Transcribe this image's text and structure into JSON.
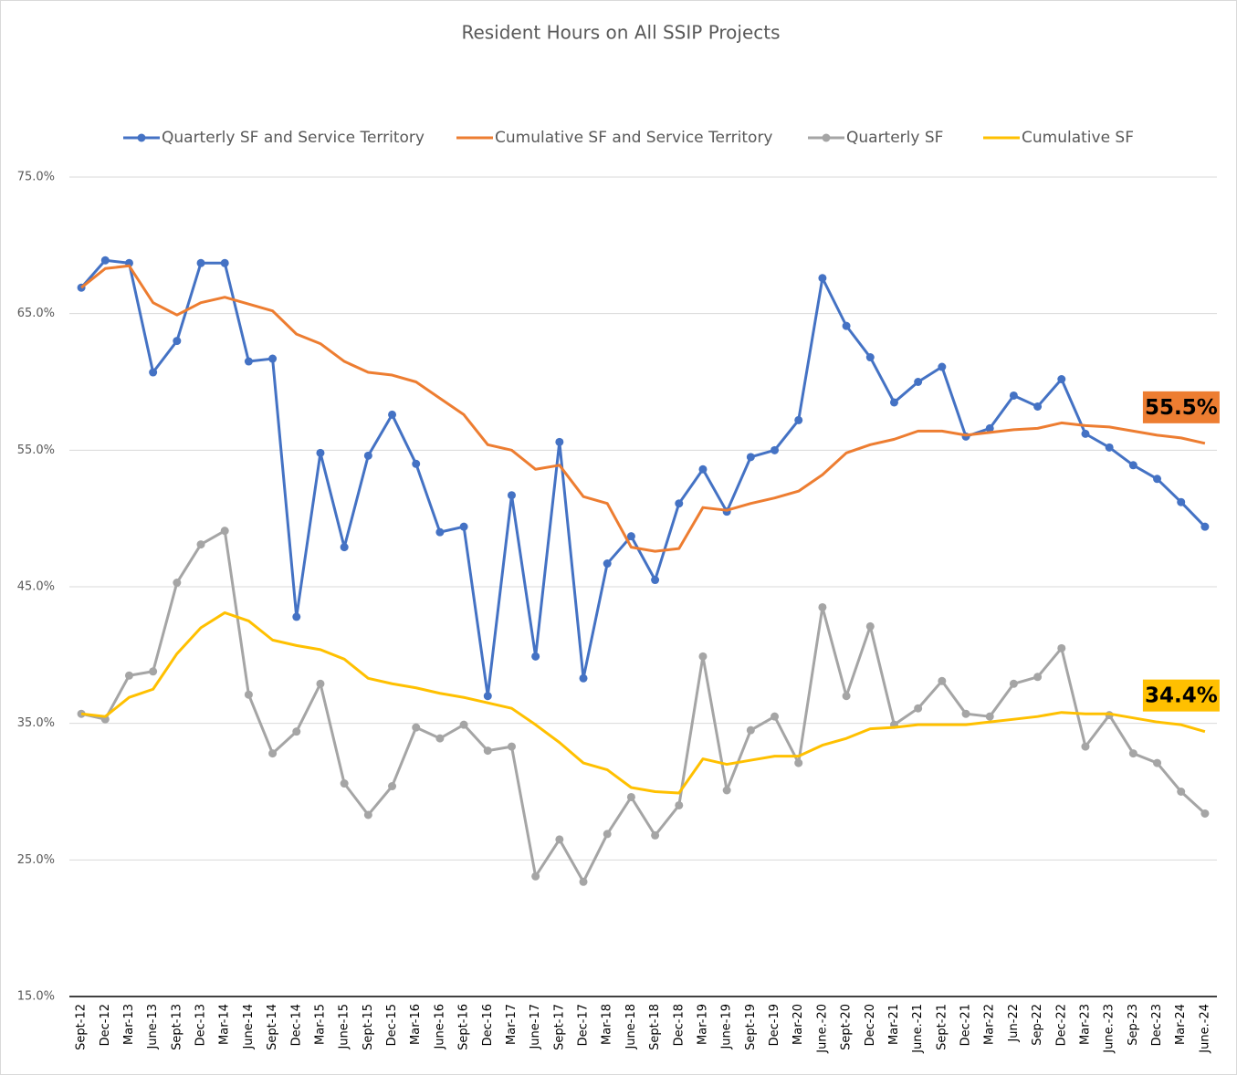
{
  "chart_data": {
    "type": "line",
    "title": "Resident Hours on All SSIP Projects",
    "categories": [
      "Sept-12",
      "Dec-12",
      "Mar-13",
      "June-13",
      "Sept-13",
      "Dec-13",
      "Mar-14",
      "June-14",
      "Sept-14",
      "Dec-14",
      "Mar-15",
      "June-15",
      "Sept-15",
      "Dec-15",
      "Mar-16",
      "June-16",
      "Sept-16",
      "Dec-16",
      "Mar-17",
      "June-17",
      "Sept-17",
      "Dec-17",
      "Mar-18",
      "June-18",
      "Sept-18",
      "Dec-18",
      "Mar-19",
      "June-19",
      "Sept-19",
      "Dec-19",
      "Mar-20",
      "June.-20",
      "Sept-20",
      "Dec-20",
      "Mar-21",
      "June.-21",
      "Sept-21",
      "Dec-21",
      "Mar-22",
      "Jun-22",
      "Sep-22",
      "Dec-22",
      "Mar-23",
      "June.-23",
      "Sep-23",
      "Dec-23",
      "Mar-24",
      "June.-24"
    ],
    "series": [
      {
        "name": "Quarterly SF and Service Territory",
        "color": "#4472c4",
        "markers": true,
        "values": [
          66.9,
          68.9,
          68.7,
          60.7,
          63.0,
          68.7,
          68.7,
          61.5,
          61.7,
          42.8,
          54.8,
          47.9,
          54.6,
          57.6,
          54.0,
          49.0,
          49.4,
          37.0,
          51.7,
          39.9,
          55.6,
          38.3,
          46.7,
          48.7,
          45.5,
          51.1,
          53.6,
          50.5,
          54.5,
          55.0,
          57.2,
          67.6,
          64.1,
          61.8,
          58.5,
          60.0,
          61.1,
          56.0,
          56.6,
          59.0,
          58.2,
          60.2,
          56.2,
          55.2,
          53.9,
          52.9,
          51.2,
          49.4
        ]
      },
      {
        "name": "Cumulative SF and Service Territory",
        "color": "#ed7d31",
        "markers": false,
        "values": [
          66.9,
          68.3,
          68.5,
          65.8,
          64.9,
          65.8,
          66.2,
          65.7,
          65.2,
          63.5,
          62.8,
          61.5,
          60.7,
          60.5,
          60.0,
          58.8,
          57.6,
          55.4,
          55.0,
          53.6,
          53.9,
          51.6,
          51.1,
          47.9,
          47.6,
          47.8,
          50.8,
          50.6,
          51.1,
          51.5,
          52.0,
          53.2,
          54.8,
          55.4,
          55.8,
          56.4,
          56.4,
          56.1,
          56.3,
          56.5,
          56.6,
          57.0,
          56.8,
          56.7,
          56.4,
          56.1,
          55.9,
          55.5
        ],
        "value_labels": [
          null,
          null,
          null,
          null,
          null,
          null,
          null,
          null,
          null,
          null,
          null,
          null,
          null,
          null,
          null,
          null,
          null,
          null,
          null,
          null,
          null,
          null,
          null,
          null,
          null,
          null,
          null,
          null,
          null,
          null,
          null,
          null,
          null,
          null,
          null,
          null,
          null,
          null,
          null,
          null,
          null,
          null,
          null,
          null,
          null,
          null,
          null,
          "55.5%"
        ]
      },
      {
        "name": "Quarterly SF",
        "color": "#a5a5a5",
        "markers": true,
        "values": [
          35.7,
          35.3,
          38.5,
          38.8,
          45.3,
          48.1,
          49.1,
          37.1,
          32.8,
          34.4,
          37.9,
          30.6,
          28.3,
          30.4,
          34.7,
          33.9,
          34.9,
          33.0,
          33.3,
          23.8,
          26.5,
          23.4,
          26.9,
          29.6,
          26.8,
          29.0,
          39.9,
          30.1,
          34.5,
          35.5,
          32.1,
          43.5,
          37.0,
          42.1,
          34.9,
          36.1,
          38.1,
          35.7,
          35.5,
          37.9,
          38.4,
          40.5,
          33.3,
          35.6,
          32.8,
          32.1,
          30.0,
          28.4
        ]
      },
      {
        "name": "Cumulative SF",
        "color": "#ffc000",
        "markers": false,
        "values": [
          35.7,
          35.5,
          36.9,
          37.5,
          40.1,
          42.0,
          43.1,
          42.5,
          41.1,
          40.7,
          40.4,
          39.7,
          38.3,
          37.9,
          37.6,
          37.2,
          36.9,
          36.5,
          36.1,
          34.9,
          33.6,
          32.1,
          31.6,
          30.3,
          30.0,
          29.9,
          32.4,
          32.0,
          32.3,
          32.6,
          32.6,
          33.4,
          33.9,
          34.6,
          34.7,
          34.9,
          34.9,
          34.9,
          35.1,
          35.3,
          35.5,
          35.8,
          35.7,
          35.7,
          35.4,
          35.1,
          34.9,
          34.4
        ],
        "value_labels": [
          null,
          null,
          null,
          null,
          null,
          null,
          null,
          null,
          null,
          null,
          null,
          null,
          null,
          null,
          null,
          null,
          null,
          null,
          null,
          null,
          null,
          null,
          null,
          null,
          null,
          null,
          null,
          null,
          null,
          null,
          null,
          null,
          null,
          null,
          null,
          null,
          null,
          null,
          null,
          null,
          null,
          null,
          null,
          null,
          null,
          null,
          null,
          "34.4%"
        ]
      }
    ],
    "ylim": [
      15,
      75
    ],
    "yticks": [
      {
        "value": 15,
        "label": "15.0%"
      },
      {
        "value": 25,
        "label": "25.0%"
      },
      {
        "value": 35,
        "label": "35.0%"
      },
      {
        "value": 45,
        "label": "45.0%"
      },
      {
        "value": 55,
        "label": "55.0%"
      },
      {
        "value": 65,
        "label": "65.0%"
      },
      {
        "value": 75,
        "label": "75.0%"
      }
    ],
    "grid": true,
    "legend": "top"
  }
}
